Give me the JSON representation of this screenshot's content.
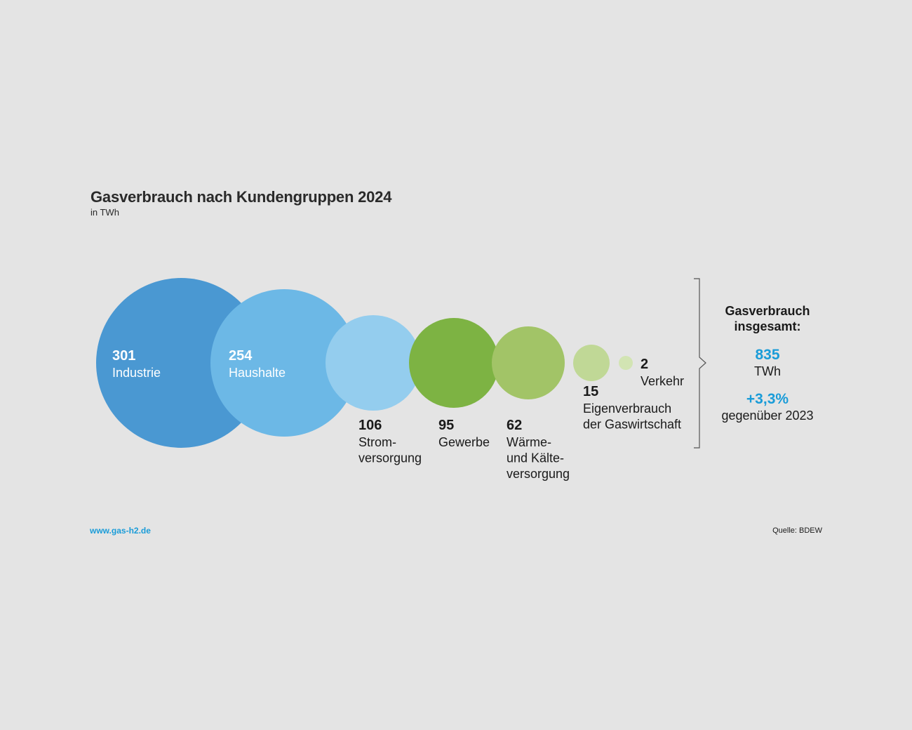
{
  "header": {
    "title": "Gasverbrauch nach Kundengruppen 2024",
    "unit": "in TWh"
  },
  "chart_data": {
    "type": "bubble",
    "title": "Gasverbrauch nach Kundengruppen 2024",
    "subtitle": "in TWh",
    "categories": [
      "Industrie",
      "Haushalte",
      "Stromversorgung",
      "Gewerbe",
      "Wärme- und Kälteversorgung",
      "Eigenverbrauch der Gaswirtschaft",
      "Verkehr"
    ],
    "values": [
      301,
      254,
      106,
      95,
      62,
      15,
      2
    ],
    "items": [
      {
        "value": "301",
        "label": "Industrie",
        "color": "#4a98d2"
      },
      {
        "value": "254",
        "label": "Haushalte",
        "color": "#6cb8e6"
      },
      {
        "value": "106",
        "label": "Strom-\nversorgung",
        "color": "#94cdee"
      },
      {
        "value": "95",
        "label": "Gewerbe",
        "color": "#7db343"
      },
      {
        "value": "62",
        "label": "Wärme-\nund Kälte-\nversorgung",
        "color": "#a2c467"
      },
      {
        "value": "15",
        "label": "Eigenverbrauch\nder Gaswirtschaft",
        "color": "#c0d896"
      },
      {
        "value": "2",
        "label": "Verkehr",
        "color": "#d2e4b3"
      }
    ]
  },
  "total": {
    "label": "Gasverbrauch\ninsgesamt:",
    "value": "835",
    "unit": "TWh",
    "change": "+3,3%",
    "compare": "gegenüber 2023"
  },
  "footer": {
    "link": "www.gas-h2.de",
    "source": "Quelle: BDEW"
  }
}
